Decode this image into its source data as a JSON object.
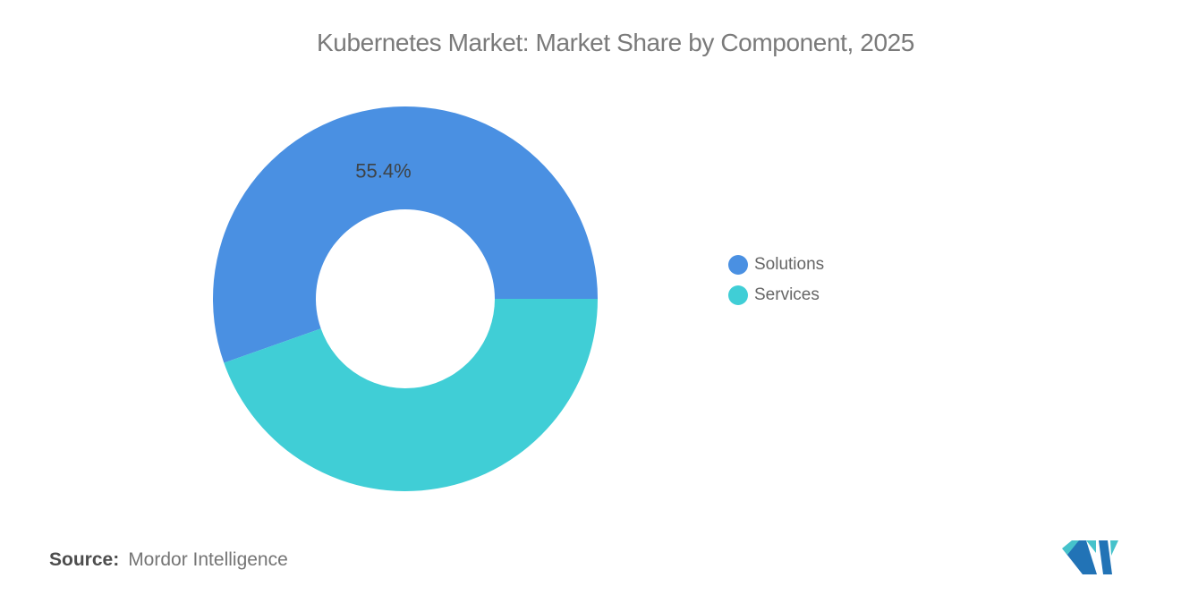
{
  "chart_data": {
    "type": "pie",
    "subtype": "donut",
    "title": "Kubernetes Market: Market Share by Component, 2025",
    "series": [
      {
        "name": "Solutions",
        "value": 55.4,
        "label": "55.4%",
        "color": "#4A90E2"
      },
      {
        "name": "Services",
        "value": 44.6,
        "label": "",
        "color": "#40CED6"
      }
    ],
    "start_angle_deg": 90,
    "direction": "counterclockwise",
    "donut_hole_ratio": 0.465,
    "legend_position": "right",
    "label_color": "#3E4347",
    "grid": "off"
  },
  "source": {
    "label": "Source:",
    "value": "Mordor Intelligence"
  },
  "branding": {
    "logo_name": "mordor-intelligence-logo",
    "logo_blue": "#2273B6",
    "logo_teal": "#45C2CB"
  }
}
